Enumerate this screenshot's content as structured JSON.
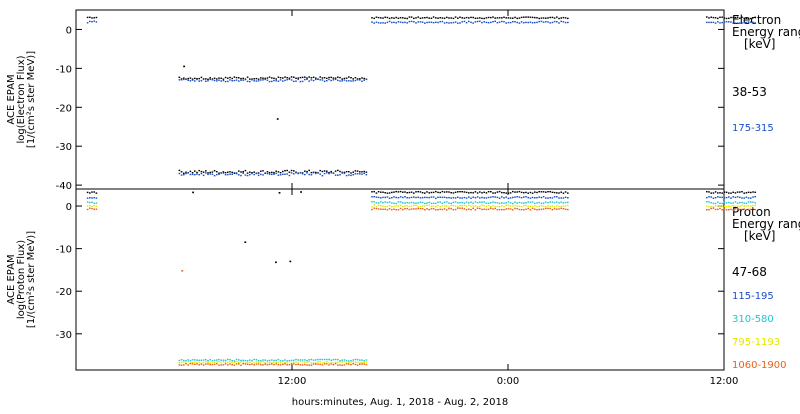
{
  "chart_data": [
    {
      "type": "scatter",
      "ylabel": [
        "ACE EPAM",
        "log(Electron Flux)",
        "[1/(cm²s ster MeV)]"
      ],
      "ylim": [
        -41,
        5
      ],
      "yticks": [
        0,
        -10,
        -20,
        -30,
        -40
      ],
      "legend_title": [
        "Electron",
        "Energy range",
        "[keV]"
      ],
      "series": [
        {
          "name": "38-53",
          "color": "#000000",
          "segments": [
            {
              "x": [
                0.6,
                1.2
              ],
              "y": [
                2.9,
                3.3
              ]
            },
            {
              "x": [
                16.4,
                27.3
              ],
              "y": [
                2.8,
                3.2
              ]
            },
            {
              "x": [
                35.0,
                37.7
              ],
              "y": [
                2.8,
                3.2
              ]
            },
            {
              "x": [
                5.7,
                16.2
              ],
              "y": [
                -12.8,
                -12.2
              ]
            },
            {
              "x": [
                5.7,
                16.2
              ],
              "y": [
                -37.0,
                -36.2
              ]
            }
          ],
          "singles": [
            [
              6.0,
              -9.5
            ],
            [
              11.2,
              -23.0
            ]
          ]
        },
        {
          "name": "175-315",
          "color": "#1a4fc8",
          "segments": [
            {
              "x": [
                0.6,
                1.2
              ],
              "y": [
                1.6,
                2.2
              ]
            },
            {
              "x": [
                16.4,
                27.3
              ],
              "y": [
                1.6,
                2.1
              ]
            },
            {
              "x": [
                35.0,
                37.7
              ],
              "y": [
                1.6,
                2.0
              ]
            },
            {
              "x": [
                5.7,
                16.2
              ],
              "y": [
                -13.4,
                -12.8
              ]
            },
            {
              "x": [
                5.7,
                16.2
              ],
              "y": [
                -37.6,
                -36.8
              ]
            }
          ],
          "singles": []
        }
      ]
    },
    {
      "type": "scatter",
      "ylabel": [
        "ACE EPAM",
        "log(Proton Flux)",
        "[1/(cm²s ster MeV)]"
      ],
      "ylim": [
        -38.5,
        4
      ],
      "yticks": [
        0,
        -10,
        -20,
        -30
      ],
      "legend_title": [
        "Proton",
        "Energy range",
        "[keV]"
      ],
      "series": [
        {
          "name": "47-68",
          "color": "#000000",
          "segments": [
            {
              "x": [
                0.6,
                1.2
              ],
              "y": [
                3.0,
                3.4
              ]
            },
            {
              "x": [
                16.4,
                27.3
              ],
              "y": [
                3.0,
                3.4
              ]
            },
            {
              "x": [
                35.0,
                37.7
              ],
              "y": [
                3.0,
                3.4
              ]
            }
          ],
          "singles": [
            [
              6.5,
              3.2
            ],
            [
              9.4,
              -8.5
            ],
            [
              11.1,
              -13.2
            ],
            [
              11.9,
              -13.0
            ],
            [
              12.5,
              3.3
            ],
            [
              11.3,
              3.1
            ]
          ]
        },
        {
          "name": "115-195",
          "color": "#1a4fc8",
          "segments": [
            {
              "x": [
                0.6,
                1.2
              ],
              "y": [
                1.8,
                2.2
              ]
            },
            {
              "x": [
                16.4,
                27.3
              ],
              "y": [
                1.8,
                2.2
              ]
            },
            {
              "x": [
                35.0,
                37.7
              ],
              "y": [
                1.8,
                2.2
              ]
            }
          ],
          "singles": []
        },
        {
          "name": "310-580",
          "color": "#22c7d6",
          "segments": [
            {
              "x": [
                0.6,
                1.2
              ],
              "y": [
                0.6,
                1.0
              ]
            },
            {
              "x": [
                16.4,
                27.3
              ],
              "y": [
                0.6,
                1.0
              ]
            },
            {
              "x": [
                35.0,
                37.7
              ],
              "y": [
                0.6,
                1.0
              ]
            },
            {
              "x": [
                5.7,
                16.2
              ],
              "y": [
                -36.4,
                -36.0
              ]
            }
          ],
          "singles": []
        },
        {
          "name": "795-1193",
          "color": "#e6e600",
          "segments": [
            {
              "x": [
                0.6,
                1.2
              ],
              "y": [
                -0.2,
                0.2
              ]
            },
            {
              "x": [
                16.4,
                27.3
              ],
              "y": [
                -0.2,
                0.2
              ]
            },
            {
              "x": [
                35.0,
                37.7
              ],
              "y": [
                -0.2,
                0.2
              ]
            },
            {
              "x": [
                5.7,
                16.2
              ],
              "y": [
                -36.9,
                -36.5
              ]
            }
          ],
          "singles": []
        },
        {
          "name": "1060-1900",
          "color": "#e8601c",
          "segments": [
            {
              "x": [
                0.6,
                1.2
              ],
              "y": [
                -0.9,
                -0.5
              ]
            },
            {
              "x": [
                16.4,
                27.3
              ],
              "y": [
                -0.9,
                -0.5
              ]
            },
            {
              "x": [
                35.0,
                37.7
              ],
              "y": [
                -0.9,
                -0.5
              ]
            },
            {
              "x": [
                5.7,
                16.2
              ],
              "y": [
                -37.4,
                -37.0
              ]
            }
          ],
          "singles": [
            [
              5.9,
              -15.2
            ]
          ]
        }
      ]
    }
  ],
  "x_axis": {
    "tick_labels": [
      "12:00",
      "0:00",
      "12:00"
    ],
    "tick_hours": [
      12,
      24,
      36
    ],
    "xlim": [
      0,
      36
    ],
    "label": "hours:minutes, Aug.  1, 2018 - Aug.  2, 2018"
  }
}
